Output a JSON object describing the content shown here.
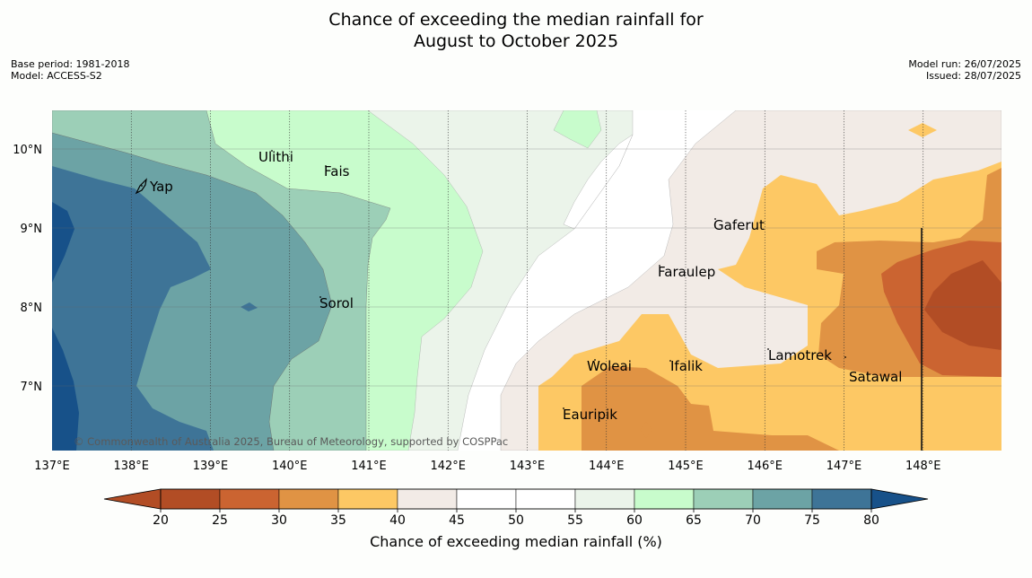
{
  "title_line1": "Chance of exceeding the median rainfall for",
  "title_line2": "August to October 2025",
  "base_period": "Base period: 1981-2018",
  "model": "Model: ACCESS-S2",
  "model_run": "Model run: 26/07/2025",
  "issued": "Issued: 28/07/2025",
  "copyright": "© Commonwealth of Australia 2025, Bureau of Meteorology, supported by COSPPac",
  "map": {
    "lon_labels": [
      "137°E",
      "138°E",
      "139°E",
      "140°E",
      "141°E",
      "142°E",
      "143°E",
      "144°E",
      "145°E",
      "146°E",
      "147°E",
      "148°E"
    ],
    "lat_labels": [
      "10°N",
      "9°N",
      "8°N",
      "7°N"
    ],
    "places": [
      {
        "name": "Yap"
      },
      {
        "name": "Ulithi"
      },
      {
        "name": "Fais"
      },
      {
        "name": "Gaferut"
      },
      {
        "name": "Faraulep"
      },
      {
        "name": "Sorol"
      },
      {
        "name": "Woleai"
      },
      {
        "name": "Ifalik"
      },
      {
        "name": "Lamotrek"
      },
      {
        "name": "Satawal"
      },
      {
        "name": "Eauripik"
      }
    ]
  },
  "colorbar": {
    "ticks": [
      "20",
      "25",
      "30",
      "35",
      "40",
      "45",
      "50",
      "55",
      "60",
      "65",
      "70",
      "75",
      "80"
    ],
    "colors": [
      "#b24d25",
      "#cb6431",
      "#e09344",
      "#fdc864",
      "#f2ebe6",
      "#ffffff",
      "#ffffff",
      "#ebf4ea",
      "#c8fccc",
      "#9ccfb7",
      "#6ca3a5",
      "#3e7497",
      "#175189"
    ],
    "label": "Chance of exceeding median rainfall (%)"
  },
  "chart_data": {
    "type": "heatmap",
    "title": "Chance of exceeding the median rainfall for August to October 2025",
    "xlabel": "",
    "ylabel": "",
    "xlim": [
      137,
      149
    ],
    "ylim": [
      6.2,
      10.5
    ],
    "color_levels": [
      20,
      25,
      30,
      35,
      40,
      45,
      50,
      55,
      60,
      65,
      70,
      75,
      80
    ],
    "colorbar_label": "Chance of exceeding median rainfall (%)"
  }
}
